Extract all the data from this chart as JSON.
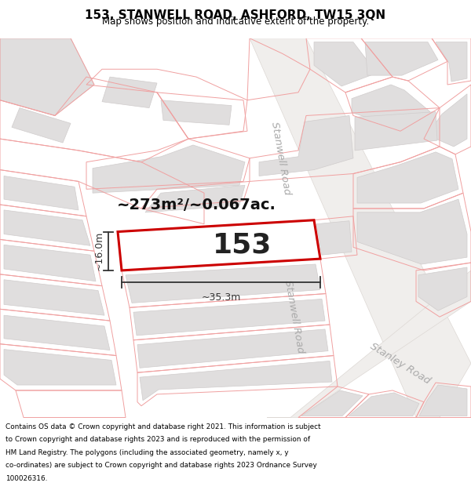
{
  "title": "153, STANWELL ROAD, ASHFORD, TW15 3QN",
  "subtitle": "Map shows position and indicative extent of the property.",
  "footer_lines": [
    "Contains OS data © Crown copyright and database right 2021. This information is subject",
    "to Crown copyright and database rights 2023 and is reproduced with the permission of",
    "HM Land Registry. The polygons (including the associated geometry, namely x, y",
    "co-ordinates) are subject to Crown copyright and database rights 2023 Ordnance Survey",
    "100026316."
  ],
  "area_text": "~273m²/~0.067ac.",
  "property_number": "153",
  "dim_width": "~35.3m",
  "dim_height": "~16.0m",
  "map_bg": "#ffffff",
  "plot_fill": "#ffffff",
  "plot_edge": "#cc0000",
  "building_fill": "#e0dede",
  "building_edge": "#e0dede",
  "boundary_color": "#f0a0a0",
  "road_label_color": "#aaaaaa",
  "dim_color": "#333333",
  "title_color": "#000000",
  "footer_color": "#000000",
  "stanwell_road_label": "Stanwell Road",
  "stanley_road_label": "Stanley Road"
}
